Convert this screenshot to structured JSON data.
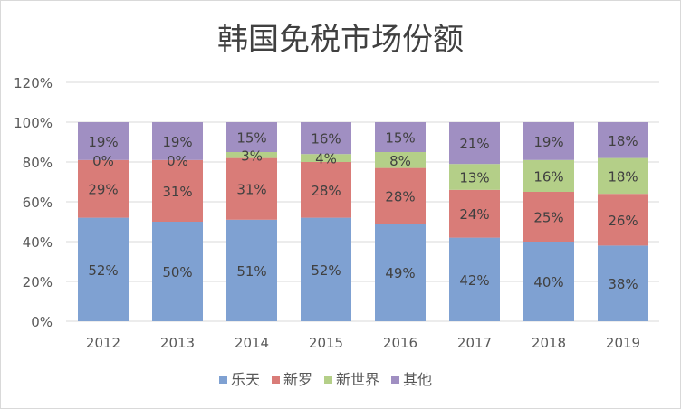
{
  "chart_data": {
    "type": "bar",
    "stacked": true,
    "title": "韩国免税市场份额",
    "categories": [
      "2012",
      "2013",
      "2014",
      "2015",
      "2016",
      "2017",
      "2018",
      "2019"
    ],
    "series": [
      {
        "name": "乐天",
        "color": "#7fa1d2",
        "values": [
          52,
          50,
          51,
          52,
          49,
          42,
          40,
          38
        ]
      },
      {
        "name": "新罗",
        "color": "#d97c78",
        "values": [
          29,
          31,
          31,
          28,
          28,
          24,
          25,
          26
        ]
      },
      {
        "name": "新世界",
        "color": "#b4cf88",
        "values": [
          0,
          0,
          3,
          4,
          8,
          13,
          16,
          18
        ]
      },
      {
        "name": "其他",
        "color": "#a08fc2",
        "values": [
          19,
          19,
          15,
          16,
          15,
          21,
          19,
          18
        ]
      }
    ],
    "yticks": [
      "0%",
      "20%",
      "40%",
      "60%",
      "80%",
      "100%",
      "120%"
    ],
    "ylim": [
      0,
      120
    ],
    "unit": "%",
    "grid": true,
    "legend": "bottom"
  }
}
